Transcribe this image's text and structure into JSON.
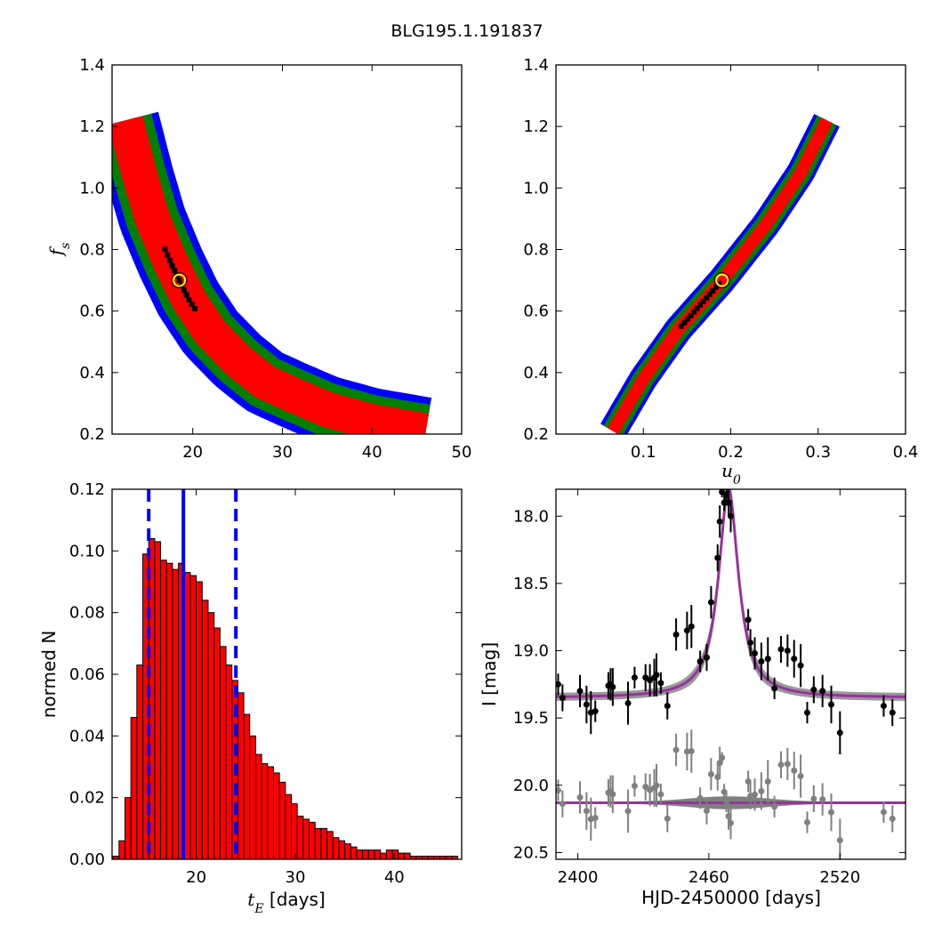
{
  "figure_title": "BLG195.1.191837",
  "colors": {
    "blue": "#0000ff",
    "green": "#008000",
    "red": "#ff0000",
    "black": "#000000",
    "best_fit_marker": "#ffff00",
    "hist_bar": "#ff0000",
    "fit_line": "#9b30a0",
    "model_band": "#808080",
    "data_black": "#000000",
    "data_gray": "#808080"
  },
  "chart_data": [
    {
      "id": "fs_vs_tE",
      "type": "heatmap",
      "title": "",
      "xlabel": "",
      "ylabel": "f_s",
      "xlim": [
        11,
        50
      ],
      "ylim": [
        0.2,
        1.4
      ],
      "xticks": [
        20,
        30,
        40,
        50
      ],
      "yticks": [
        0.2,
        0.4,
        0.6,
        0.8,
        1.0,
        1.2,
        1.4
      ],
      "ytick_labels": [
        "0.2",
        "0.4",
        "0.6",
        "0.8",
        "1.0",
        "1.2",
        "1.4"
      ],
      "note": "confidence regions (blue > green > red > black) along a decreasing curve",
      "best_fit": {
        "x": 18.5,
        "y": 0.7
      },
      "ridge": [
        [
          12.5,
          1.22
        ],
        [
          14.0,
          1.05
        ],
        [
          15.5,
          0.9
        ],
        [
          17.5,
          0.76
        ],
        [
          19.5,
          0.64
        ],
        [
          22.0,
          0.53
        ],
        [
          25.0,
          0.44
        ],
        [
          28.0,
          0.37
        ],
        [
          31.0,
          0.33
        ],
        [
          35.0,
          0.28
        ],
        [
          40.0,
          0.24
        ],
        [
          46.0,
          0.21
        ]
      ]
    },
    {
      "id": "fs_vs_u0",
      "type": "heatmap",
      "title": "",
      "xlabel": "u_0",
      "ylabel": "",
      "xlim": [
        0.0,
        0.4
      ],
      "ylim": [
        0.2,
        1.4
      ],
      "xticks": [
        0.1,
        0.2,
        0.3,
        0.4
      ],
      "xtick_labels": [
        "0.1",
        "0.2",
        "0.3",
        "0.4"
      ],
      "yticks": [
        0.2,
        0.4,
        0.6,
        0.8,
        1.0,
        1.2,
        1.4
      ],
      "ytick_labels": [
        "0.2",
        "0.4",
        "0.6",
        "0.8",
        "1.0",
        "1.2",
        "1.4"
      ],
      "note": "narrow linear confidence region",
      "best_fit": {
        "x": 0.19,
        "y": 0.7
      },
      "ridge": [
        [
          0.065,
          0.21
        ],
        [
          0.1,
          0.38
        ],
        [
          0.14,
          0.54
        ],
        [
          0.19,
          0.7
        ],
        [
          0.24,
          0.88
        ],
        [
          0.28,
          1.05
        ],
        [
          0.31,
          1.22
        ]
      ]
    },
    {
      "id": "tE_histogram",
      "type": "bar",
      "title": "",
      "xlabel": "t_E [days]",
      "ylabel": "normed N",
      "xlim": [
        11.5,
        46.8
      ],
      "ylim": [
        0.0,
        0.12
      ],
      "xticks": [
        20,
        30,
        40
      ],
      "yticks": [
        0.0,
        0.02,
        0.04,
        0.06,
        0.08,
        0.1,
        0.12
      ],
      "ytick_labels": [
        "0.00",
        "0.02",
        "0.04",
        "0.06",
        "0.08",
        "0.10",
        "0.12"
      ],
      "bin_width": 0.6,
      "bin_start": 11.6,
      "values": [
        0.001,
        0.006,
        0.02,
        0.046,
        0.063,
        0.099,
        0.104,
        0.103,
        0.097,
        0.096,
        0.094,
        0.096,
        0.093,
        0.092,
        0.09,
        0.084,
        0.08,
        0.075,
        0.069,
        0.063,
        0.058,
        0.054,
        0.047,
        0.04,
        0.034,
        0.031,
        0.03,
        0.028,
        0.025,
        0.021,
        0.018,
        0.014,
        0.013,
        0.012,
        0.01,
        0.01,
        0.009,
        0.007,
        0.006,
        0.005,
        0.004,
        0.003,
        0.003,
        0.003,
        0.003,
        0.002,
        0.003,
        0.003,
        0.002,
        0.002,
        0.001,
        0.001,
        0.001,
        0.001,
        0.001,
        0.001,
        0.001,
        0.001
      ],
      "median_line": 18.7,
      "dashed_lines": [
        15.2,
        24.0
      ]
    },
    {
      "id": "light_curve",
      "type": "scatter",
      "title": "",
      "xlabel": "HJD-2450000 [days]",
      "ylabel": "I [mag]",
      "xlim": [
        2390,
        2550
      ],
      "ylim": [
        20.55,
        17.8
      ],
      "xticks": [
        2400,
        2460,
        2520
      ],
      "yticks": [
        18.0,
        18.5,
        19.0,
        19.5,
        20.0,
        20.5
      ],
      "ytick_labels": [
        "18.0",
        "18.5",
        "19.0",
        "19.5",
        "20.0",
        "20.5"
      ],
      "model": {
        "t0": 2469,
        "base": 19.35,
        "amp": 1.55,
        "width": 5.5
      },
      "residual_offset": 20.13,
      "series": [
        {
          "x": [
            2391,
            2393,
            2401,
            2404,
            2406,
            2408,
            2414,
            2415,
            2416,
            2423,
            2426,
            2431,
            2433,
            2435,
            2436,
            2438,
            2441,
            2445,
            2450,
            2452,
            2456,
            2459,
            2461,
            2464,
            2465,
            2466,
            2467,
            2468,
            2469,
            2470,
            2478,
            2479,
            2481,
            2484,
            2487,
            2490,
            2493,
            2496,
            2499,
            2502,
            2505,
            2508,
            2512,
            2516,
            2520,
            2540,
            2544
          ],
          "y": [
            19.25,
            19.35,
            19.3,
            19.4,
            19.46,
            19.45,
            19.26,
            19.25,
            19.27,
            19.39,
            19.2,
            19.2,
            19.22,
            19.2,
            19.18,
            19.24,
            19.41,
            18.88,
            18.85,
            18.82,
            19.08,
            19.05,
            18.64,
            18.31,
            18.04,
            17.82,
            17.9,
            17.84,
            17.9,
            18.0,
            18.77,
            18.94,
            19.02,
            19.08,
            19.06,
            19.28,
            18.99,
            19.0,
            19.06,
            19.11,
            19.46,
            19.29,
            19.3,
            19.4,
            19.61,
            19.41,
            19.46
          ]
        }
      ]
    }
  ]
}
